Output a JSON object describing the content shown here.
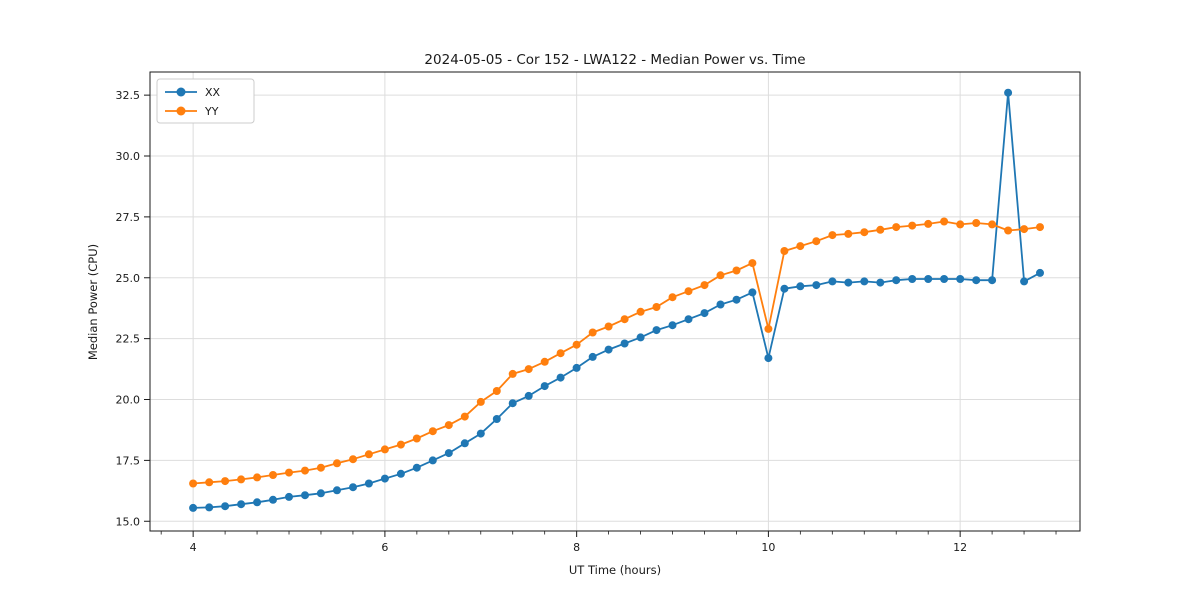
{
  "header": {
    "title": "2024-05-05 - Cor 152 - LWA122 - Median Power vs. Time"
  },
  "chart_data": {
    "type": "line",
    "title": "2024-05-05 - Cor 152 - LWA122 - Median Power vs. Time",
    "xlabel": "UT Time (hours)",
    "ylabel": "Median Power (CPU)",
    "xlim": [
      3.55,
      13.25
    ],
    "ylim": [
      14.6,
      33.45
    ],
    "xticks": [
      4,
      6,
      8,
      10,
      12
    ],
    "xtick_labels": [
      "4",
      "6",
      "8",
      "10",
      "12"
    ],
    "minor_xtick_step": 0.33333,
    "yticks": [
      15.0,
      17.5,
      20.0,
      22.5,
      25.0,
      27.5,
      30.0,
      32.5
    ],
    "ytick_labels": [
      "15.0",
      "17.5",
      "20.0",
      "22.5",
      "25.0",
      "27.5",
      "30.0",
      "32.5"
    ],
    "grid": true,
    "grid_color": "#dddddd",
    "legend_position": "upper-left",
    "background": "#ffffff",
    "x": [
      4.0,
      4.167,
      4.333,
      4.5,
      4.667,
      4.833,
      5.0,
      5.167,
      5.333,
      5.5,
      5.667,
      5.833,
      6.0,
      6.167,
      6.333,
      6.5,
      6.667,
      6.833,
      7.0,
      7.167,
      7.333,
      7.5,
      7.667,
      7.833,
      8.0,
      8.167,
      8.333,
      8.5,
      8.667,
      8.833,
      9.0,
      9.167,
      9.333,
      9.5,
      9.667,
      9.833,
      10.0,
      10.167,
      10.333,
      10.5,
      10.667,
      10.833,
      11.0,
      11.167,
      11.333,
      11.5,
      11.667,
      11.833,
      12.0,
      12.167,
      12.333,
      12.5,
      12.667,
      12.833
    ],
    "series": [
      {
        "name": "XX",
        "color": "#1f77b4",
        "values": [
          15.55,
          15.57,
          15.62,
          15.7,
          15.78,
          15.88,
          16.0,
          16.07,
          16.15,
          16.27,
          16.4,
          16.55,
          16.75,
          16.95,
          17.2,
          17.5,
          17.8,
          18.2,
          18.6,
          19.2,
          19.85,
          20.15,
          20.55,
          20.9,
          21.3,
          21.75,
          22.05,
          22.3,
          22.55,
          22.85,
          23.05,
          23.3,
          23.55,
          23.9,
          24.1,
          24.4,
          21.7,
          24.55,
          24.65,
          24.7,
          24.85,
          24.8,
          24.85,
          24.8,
          24.9,
          24.95,
          24.95,
          24.95,
          24.95,
          24.9,
          24.9,
          32.6,
          24.85,
          25.2
        ]
      },
      {
        "name": "YY",
        "color": "#ff7f0e",
        "values": [
          16.55,
          16.6,
          16.65,
          16.72,
          16.8,
          16.9,
          17.0,
          17.08,
          17.2,
          17.38,
          17.55,
          17.75,
          17.95,
          18.15,
          18.4,
          18.7,
          18.95,
          19.3,
          19.9,
          20.35,
          21.05,
          21.25,
          21.55,
          21.9,
          22.25,
          22.75,
          23.0,
          23.3,
          23.6,
          23.8,
          24.2,
          24.45,
          24.7,
          25.1,
          25.3,
          25.6,
          22.9,
          26.1,
          26.3,
          26.5,
          26.75,
          26.8,
          26.87,
          26.97,
          27.08,
          27.14,
          27.21,
          27.31,
          27.19,
          27.25,
          27.19,
          26.94,
          27.0,
          27.08
        ]
      }
    ]
  }
}
